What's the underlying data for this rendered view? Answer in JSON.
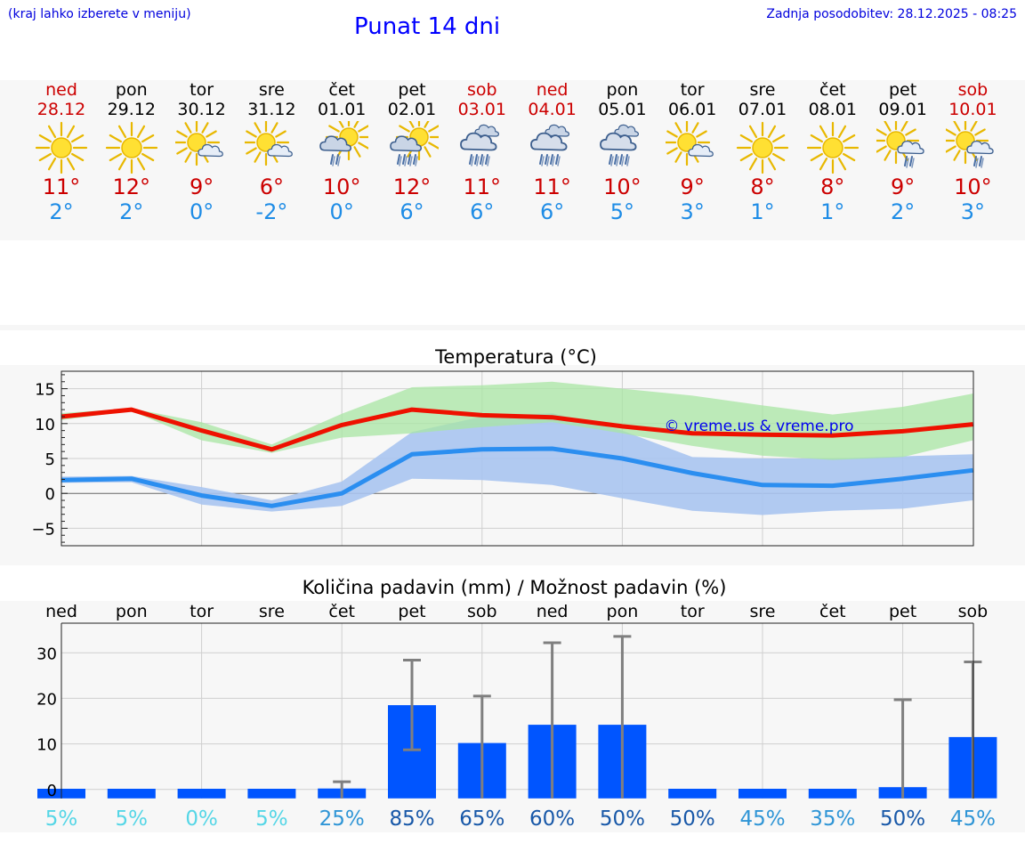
{
  "header": {
    "hint": "(kraj lahko izberete v meniju)",
    "title": "Punat 14 dni",
    "updated": "Zadnja posodobitev: 28.12.2025 - 08:25"
  },
  "days": [
    {
      "name": "ned",
      "date": "28.12",
      "weekend": true,
      "icon": "sun-icon",
      "tmax": "11°",
      "tmin": "2°"
    },
    {
      "name": "pon",
      "date": "29.12",
      "weekend": false,
      "icon": "sun-icon",
      "tmax": "12°",
      "tmin": "2°"
    },
    {
      "name": "tor",
      "date": "30.12",
      "weekend": false,
      "icon": "sun-cloud-icon",
      "tmax": "9°",
      "tmin": "0°"
    },
    {
      "name": "sre",
      "date": "31.12",
      "weekend": false,
      "icon": "sun-cloud-icon",
      "tmax": "6°",
      "tmin": "-2°"
    },
    {
      "name": "čet",
      "date": "01.01",
      "weekend": false,
      "icon": "sun-rain-icon",
      "tmax": "10°",
      "tmin": "0°"
    },
    {
      "name": "pet",
      "date": "02.01",
      "weekend": false,
      "icon": "sun-rain-heavy-icon",
      "tmax": "12°",
      "tmin": "6°"
    },
    {
      "name": "sob",
      "date": "03.01",
      "weekend": true,
      "icon": "rain-cloud-icon",
      "tmax": "11°",
      "tmin": "6°"
    },
    {
      "name": "ned",
      "date": "04.01",
      "weekend": true,
      "icon": "rain-cloud-icon",
      "tmax": "11°",
      "tmin": "6°"
    },
    {
      "name": "pon",
      "date": "05.01",
      "weekend": false,
      "icon": "rain-cloud-icon",
      "tmax": "10°",
      "tmin": "5°"
    },
    {
      "name": "tor",
      "date": "06.01",
      "weekend": false,
      "icon": "sun-cloud-icon",
      "tmax": "9°",
      "tmin": "3°"
    },
    {
      "name": "sre",
      "date": "07.01",
      "weekend": false,
      "icon": "sun-icon",
      "tmax": "8°",
      "tmin": "1°"
    },
    {
      "name": "čet",
      "date": "08.01",
      "weekend": false,
      "icon": "sun-icon",
      "tmax": "8°",
      "tmin": "1°"
    },
    {
      "name": "pet",
      "date": "09.01",
      "weekend": false,
      "icon": "sun-cloud-rain-icon",
      "tmax": "9°",
      "tmin": "2°"
    },
    {
      "name": "sob",
      "date": "10.01",
      "weekend": true,
      "icon": "sun-cloud-rain-icon",
      "tmax": "10°",
      "tmin": "3°"
    }
  ],
  "colors": {
    "weekend": "#cc0000",
    "max": "#cc0000",
    "min": "#1e8ce6",
    "max_line": "#ee1100",
    "min_line": "#2b8ef0",
    "max_band": "#a8e6a3",
    "min_band": "#a9c4f0",
    "bar": "#0055ff",
    "error": "#7f7f7f",
    "credit": "#0000ee"
  },
  "chart_data": [
    {
      "type": "line",
      "title": "Temperatura (°C)",
      "credit": "© vreme.us & vreme.pro",
      "ylim": [
        -7.5,
        17.5
      ],
      "yticks": [
        15,
        10,
        5,
        0,
        -5
      ],
      "ytick_labels": [
        "15",
        "10",
        "5",
        "0",
        "−5"
      ],
      "x": [
        0,
        1,
        2,
        3,
        4,
        5,
        6,
        7,
        8,
        9,
        10,
        11,
        12,
        13
      ],
      "series": [
        {
          "name": "max",
          "values": [
            11,
            12,
            9,
            6.3,
            9.8,
            12,
            11.2,
            10.9,
            9.6,
            8.6,
            8.4,
            8.3,
            8.9,
            9.9
          ]
        },
        {
          "name": "min",
          "values": [
            1.9,
            2.1,
            -0.3,
            -1.8,
            0,
            5.6,
            6.3,
            6.4,
            5,
            2.9,
            1.2,
            1.1,
            2.1,
            3.3
          ]
        }
      ],
      "bands": [
        {
          "name": "max-range",
          "upper": [
            11.5,
            12.2,
            10.2,
            7.0,
            11.4,
            15.2,
            15.5,
            16.0,
            15.0,
            14.0,
            12.6,
            11.3,
            12.4,
            14.3
          ],
          "lower": [
            10.5,
            11.8,
            7.6,
            5.8,
            8.0,
            8.6,
            9.5,
            10.2,
            8.6,
            6.8,
            5.4,
            4.8,
            5.2,
            7.6
          ]
        },
        {
          "name": "min-range",
          "upper": [
            2.4,
            2.5,
            0.9,
            -1.0,
            1.7,
            8.8,
            11.0,
            11.5,
            9.0,
            5.2,
            5.0,
            5.0,
            5.3,
            5.6
          ]
        },
        {
          "name": "min-range-lower",
          "lower": [
            1.5,
            1.6,
            -1.6,
            -2.6,
            -1.8,
            2.1,
            1.9,
            1.2,
            -0.7,
            -2.5,
            -3.1,
            -2.5,
            -2.2,
            -1.0
          ]
        }
      ]
    },
    {
      "type": "bar",
      "title": "Količina padavin (mm) / Možnost padavin (%)",
      "categories": [
        "ned",
        "pon",
        "tor",
        "sre",
        "čet",
        "pet",
        "sob",
        "ned",
        "pon",
        "tor",
        "sre",
        "čet",
        "pet",
        "sob"
      ],
      "values": [
        0,
        0,
        0,
        0,
        0.2,
        18.5,
        10.2,
        14.2,
        14.2,
        0,
        0,
        0,
        0.5,
        11.5
      ],
      "err_low": [
        0,
        0,
        0,
        0,
        0,
        8.7,
        0,
        0,
        0,
        0,
        0,
        0,
        0,
        0
      ],
      "err_high": [
        0,
        0,
        0,
        0,
        1.7,
        28.4,
        20.5,
        32.2,
        33.6,
        0,
        0,
        0,
        19.7,
        28
      ],
      "ylim": [
        -2,
        36.5
      ],
      "yticks": [
        30,
        20,
        10,
        0
      ],
      "ytick_labels": [
        "30",
        "20",
        "10",
        "0"
      ],
      "probabilities": [
        "5%",
        "5%",
        "0%",
        "5%",
        "25%",
        "85%",
        "65%",
        "60%",
        "50%",
        "50%",
        "45%",
        "35%",
        "50%",
        "45%"
      ],
      "probability_colors": [
        "#55d6e6",
        "#55d6e6",
        "#55d6e6",
        "#55d6e6",
        "#2f95d6",
        "#1858a8",
        "#1858a8",
        "#1858a8",
        "#1858a8",
        "#1858a8",
        "#2f95d6",
        "#2f95d6",
        "#1858a8",
        "#2f95d6"
      ]
    }
  ]
}
